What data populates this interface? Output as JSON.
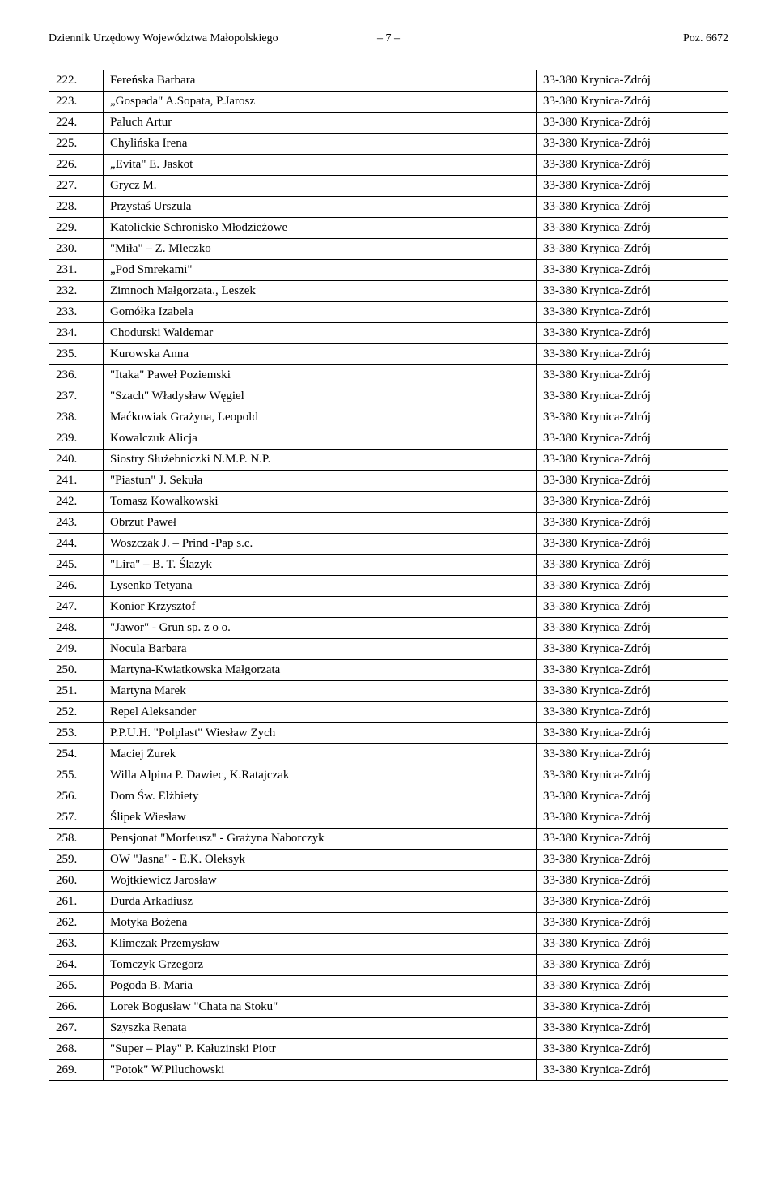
{
  "header": {
    "left": "Dziennik Urzędowy Województwa Małopolskiego",
    "center": "– 7 –",
    "right": "Poz. 6672"
  },
  "location_default": "33-380 Krynica-Zdrój",
  "rows": [
    {
      "n": "222.",
      "name": "Fereńska Barbara"
    },
    {
      "n": "223.",
      "name": "„Gospada\" A.Sopata, P.Jarosz"
    },
    {
      "n": "224.",
      "name": "Paluch Artur"
    },
    {
      "n": "225.",
      "name": "Chylińska Irena"
    },
    {
      "n": "226.",
      "name": "„Evita\" E. Jaskot"
    },
    {
      "n": "227.",
      "name": "Grycz M."
    },
    {
      "n": "228.",
      "name": "Przystaś Urszula"
    },
    {
      "n": "229.",
      "name": "Katolickie Schronisko Młodzieżowe"
    },
    {
      "n": "230.",
      "name": "\"Miła\" – Z. Mleczko"
    },
    {
      "n": "231.",
      "name": "„Pod Smrekami\""
    },
    {
      "n": "232.",
      "name": "Zimnoch Małgorzata., Leszek"
    },
    {
      "n": "233.",
      "name": "Gomółka Izabela"
    },
    {
      "n": "234.",
      "name": "Chodurski Waldemar"
    },
    {
      "n": "235.",
      "name": "Kurowska Anna"
    },
    {
      "n": "236.",
      "name": "\"Itaka\" Paweł Poziemski"
    },
    {
      "n": "237.",
      "name": "\"Szach\" Władysław Węgiel"
    },
    {
      "n": "238.",
      "name": "Maćkowiak Grażyna, Leopold"
    },
    {
      "n": "239.",
      "name": "Kowalczuk Alicja"
    },
    {
      "n": "240.",
      "name": "Siostry Służebniczki N.M.P. N.P."
    },
    {
      "n": "241.",
      "name": "\"Piastun\" J. Sekuła"
    },
    {
      "n": "242.",
      "name": "Tomasz Kowalkowski"
    },
    {
      "n": "243.",
      "name": "Obrzut Paweł"
    },
    {
      "n": "244.",
      "name": "Woszczak J. – Prind -Pap s.c."
    },
    {
      "n": "245.",
      "name": "\"Lira\" – B. T. Ślazyk"
    },
    {
      "n": "246.",
      "name": "Lysenko Tetyana"
    },
    {
      "n": "247.",
      "name": "Konior Krzysztof"
    },
    {
      "n": "248.",
      "name": "\"Jawor\" - Grun sp. z o o."
    },
    {
      "n": "249.",
      "name": "Nocula Barbara"
    },
    {
      "n": "250.",
      "name": "Martyna-Kwiatkowska Małgorzata"
    },
    {
      "n": "251.",
      "name": "Martyna Marek"
    },
    {
      "n": "252.",
      "name": "Repel Aleksander"
    },
    {
      "n": "253.",
      "name": "P.P.U.H. \"Polplast\" Wiesław Zych"
    },
    {
      "n": "254.",
      "name": "Maciej Żurek"
    },
    {
      "n": "255.",
      "name": "Willa Alpina P. Dawiec, K.Ratajczak"
    },
    {
      "n": "256.",
      "name": "Dom Św. Elżbiety"
    },
    {
      "n": "257.",
      "name": "Ślipek Wiesław"
    },
    {
      "n": "258.",
      "name": "Pensjonat \"Morfeusz\" - Grażyna Naborczyk"
    },
    {
      "n": "259.",
      "name": "OW \"Jasna\" - E.K. Oleksyk"
    },
    {
      "n": "260.",
      "name": "Wojtkiewicz Jarosław"
    },
    {
      "n": "261.",
      "name": "Durda Arkadiusz"
    },
    {
      "n": "262.",
      "name": "Motyka Bożena"
    },
    {
      "n": "263.",
      "name": "Klimczak Przemysław"
    },
    {
      "n": "264.",
      "name": "Tomczyk Grzegorz"
    },
    {
      "n": "265.",
      "name": "Pogoda B. Maria"
    },
    {
      "n": "266.",
      "name": "Lorek Bogusław \"Chata na Stoku\""
    },
    {
      "n": "267.",
      "name": "Szyszka Renata"
    },
    {
      "n": "268.",
      "name": "\"Super – Play\" P. Kałuzinski Piotr"
    },
    {
      "n": "269.",
      "name": "\"Potok\" W.Piluchowski"
    }
  ]
}
